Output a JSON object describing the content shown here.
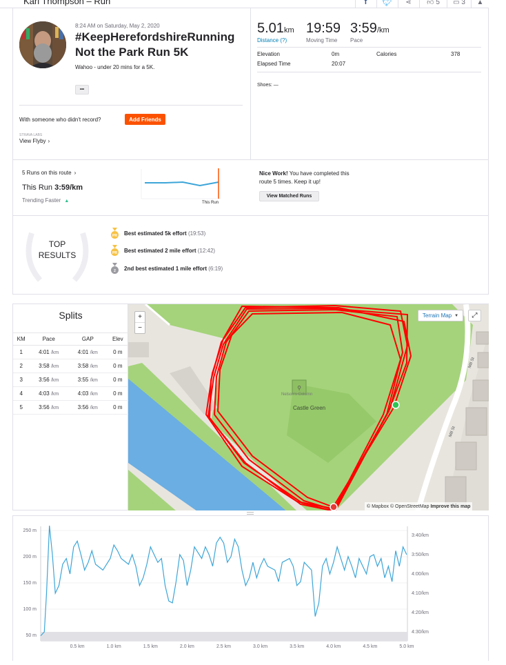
{
  "header": {
    "athlete_title": "Karl Thompson – Run",
    "kudos_count": "5",
    "comments_count": "3"
  },
  "activity": {
    "datetime": "8:24 AM on Saturday, May 2, 2020",
    "title_line1": "#KeepHerefordshireRunning",
    "title_line2": "Not the Park Run 5K",
    "description": "Wahoo - under 20 mins for a 5K.",
    "more_label": "•••",
    "with_someone": "With someone who didn't record?",
    "add_friends": "Add Friends",
    "strava_labs": "STRAVA LABS",
    "view_flyby": "View Flyby"
  },
  "stats": {
    "distance_value": "5.01",
    "distance_unit": "km",
    "distance_label": "Distance (?)",
    "moving_time": "19:59",
    "moving_time_label": "Moving Time",
    "pace_value": "3:59",
    "pace_unit": "/km",
    "pace_label": "Pace",
    "elevation_label": "Elevation",
    "elevation_value": "0m",
    "calories_label": "Calories",
    "calories_value": "378",
    "elapsed_label": "Elapsed Time",
    "elapsed_value": "20:07",
    "shoes_label": "Shoes: —"
  },
  "route": {
    "runs_on_route": "5 Runs on this route",
    "this_run_label": "This Run",
    "this_run_pace": "3:59/km",
    "trending": "Trending Faster",
    "this_run_marker": "This Run",
    "nice_work_bold": "Nice Work!",
    "nice_work_text": " You have completed this route 5 times. Keep it up!",
    "view_matched": "View Matched Runs"
  },
  "top_results": {
    "badge_line1": "TOP",
    "badge_line2": "RESULTS",
    "items": [
      {
        "text": "Best estimated 5k effort",
        "time": "(19:53)",
        "medal": "PR",
        "medal_color": "#f7c243"
      },
      {
        "text": "Best estimated 2 mile effort",
        "time": "(12:42)",
        "medal": "PR",
        "medal_color": "#f7c243"
      },
      {
        "text": "2nd best estimated 1 mile effort",
        "time": "(6:19)",
        "medal": "2",
        "medal_color": "#9b9ba2"
      }
    ]
  },
  "splits": {
    "title": "Splits",
    "headers": [
      "KM",
      "Pace",
      "GAP",
      "Elev"
    ],
    "rows": [
      {
        "km": "1",
        "pace": "4:01",
        "gap": "4:01",
        "elev": "0 m"
      },
      {
        "km": "2",
        "pace": "3:58",
        "gap": "3:58",
        "elev": "0 m"
      },
      {
        "km": "3",
        "pace": "3:56",
        "gap": "3:55",
        "elev": "0 m"
      },
      {
        "km": "4",
        "pace": "4:03",
        "gap": "4:03",
        "elev": "0 m"
      },
      {
        "km": "5",
        "pace": "3:56",
        "gap": "3:56",
        "elev": "0 m"
      }
    ],
    "unit": "/km"
  },
  "map": {
    "terrain_btn": "Terrain Map",
    "zoom_in": "+",
    "zoom_out": "−",
    "place_label": "Castle Green",
    "poi_label": "Nelson's Column",
    "street1": "Mill St",
    "street2": "Mill St",
    "attribution": "© Mapbox © OpenStreetMap",
    "improve": "Improve this map",
    "route_color": "#ff0000",
    "park_color": "#a5d37b",
    "water_color": "#6aaee3"
  },
  "chart_data": {
    "type": "line",
    "title": "",
    "xlabel": "",
    "x_ticks": [
      "0.5 km",
      "1.0 km",
      "1.5 km",
      "2.0 km",
      "2.5 km",
      "3.0 km",
      "3.5 km",
      "4.0 km",
      "4.5 km",
      "5.0 km"
    ],
    "y_ticks_left": [
      "250 m",
      "200 m",
      "150 m",
      "100 m",
      "50 m"
    ],
    "y_ticks_right": [
      "3:40/km",
      "3:50/km",
      "4:00/km",
      "4:10/km",
      "4:20/km",
      "4:30/km"
    ],
    "xlim": [
      0,
      5.01
    ],
    "series": [
      {
        "values_pace_sec": [
          [
            0.0,
            272
          ],
          [
            0.05,
            270
          ],
          [
            0.08,
            250
          ],
          [
            0.12,
            215
          ],
          [
            0.16,
            230
          ],
          [
            0.2,
            250
          ],
          [
            0.25,
            246
          ],
          [
            0.3,
            235
          ],
          [
            0.35,
            232
          ],
          [
            0.4,
            240
          ],
          [
            0.45,
            226
          ],
          [
            0.5,
            223
          ],
          [
            0.55,
            230
          ],
          [
            0.6,
            238
          ],
          [
            0.65,
            234
          ],
          [
            0.7,
            228
          ],
          [
            0.75,
            235
          ],
          [
            0.85,
            238
          ],
          [
            0.95,
            232
          ],
          [
            1.0,
            225
          ],
          [
            1.05,
            228
          ],
          [
            1.1,
            232
          ],
          [
            1.2,
            235
          ],
          [
            1.25,
            230
          ],
          [
            1.3,
            236
          ],
          [
            1.35,
            246
          ],
          [
            1.4,
            242
          ],
          [
            1.45,
            235
          ],
          [
            1.5,
            226
          ],
          [
            1.55,
            230
          ],
          [
            1.6,
            234
          ],
          [
            1.65,
            232
          ],
          [
            1.7,
            246
          ],
          [
            1.75,
            254
          ],
          [
            1.8,
            255
          ],
          [
            1.85,
            244
          ],
          [
            1.9,
            230
          ],
          [
            1.95,
            233
          ],
          [
            2.0,
            246
          ],
          [
            2.05,
            238
          ],
          [
            2.1,
            226
          ],
          [
            2.2,
            232
          ],
          [
            2.25,
            226
          ],
          [
            2.3,
            230
          ],
          [
            2.35,
            236
          ],
          [
            2.4,
            224
          ],
          [
            2.45,
            221
          ],
          [
            2.5,
            224
          ],
          [
            2.55,
            234
          ],
          [
            2.6,
            231
          ],
          [
            2.65,
            222
          ],
          [
            2.7,
            226
          ],
          [
            2.75,
            238
          ],
          [
            2.8,
            246
          ],
          [
            2.85,
            242
          ],
          [
            2.9,
            234
          ],
          [
            2.95,
            242
          ],
          [
            3.0,
            236
          ],
          [
            3.05,
            232
          ],
          [
            3.1,
            236
          ],
          [
            3.2,
            238
          ],
          [
            3.25,
            244
          ],
          [
            3.3,
            234
          ],
          [
            3.4,
            232
          ],
          [
            3.45,
            236
          ],
          [
            3.5,
            246
          ],
          [
            3.55,
            244
          ],
          [
            3.6,
            234
          ],
          [
            3.7,
            238
          ],
          [
            3.75,
            262
          ],
          [
            3.8,
            255
          ],
          [
            3.85,
            236
          ],
          [
            3.9,
            232
          ],
          [
            3.95,
            240
          ],
          [
            4.0,
            234
          ],
          [
            4.05,
            226
          ],
          [
            4.1,
            232
          ],
          [
            4.15,
            238
          ],
          [
            4.2,
            231
          ],
          [
            4.25,
            236
          ],
          [
            4.3,
            242
          ],
          [
            4.35,
            232
          ],
          [
            4.4,
            236
          ],
          [
            4.45,
            240
          ],
          [
            4.5,
            231
          ],
          [
            4.55,
            230
          ],
          [
            4.6,
            236
          ],
          [
            4.65,
            232
          ],
          [
            4.7,
            242
          ],
          [
            4.75,
            236
          ],
          [
            4.8,
            244
          ],
          [
            4.85,
            228
          ],
          [
            4.9,
            236
          ],
          [
            4.95,
            226
          ],
          [
            5.0,
            230
          ]
        ]
      },
      {
        "elevation_m": 0
      }
    ],
    "line_color": "#3ca5d8",
    "fill_color": "#e1e1e5"
  }
}
